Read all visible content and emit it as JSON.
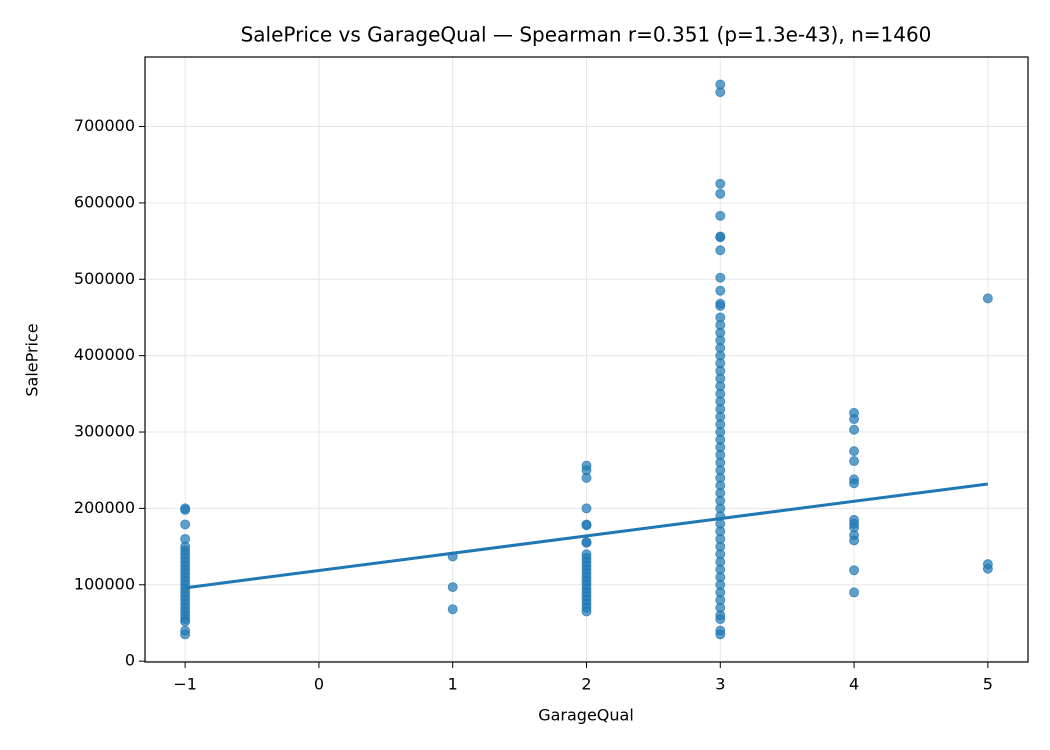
{
  "chart_data": {
    "type": "scatter",
    "title": "SalePrice vs GarageQual — Spearman r=0.351 (p=1.3e-43), n=1460",
    "x_label": "GarageQual",
    "y_label": "SalePrice",
    "xlim": [
      -1.3,
      5.3
    ],
    "ylim": [
      -1100,
      791000
    ],
    "xticks": [
      {
        "value": -1,
        "label": "−1"
      },
      0,
      1,
      2,
      3,
      4,
      5
    ],
    "yticks": [
      0,
      100000,
      200000,
      300000,
      400000,
      500000,
      600000,
      700000
    ],
    "grid": true,
    "color": "#1f77b4",
    "groups": [
      {
        "x": -1,
        "values": [
          200000,
          198000,
          179000,
          160000,
          150000,
          145000,
          140000,
          135000,
          130000,
          125000,
          120000,
          115000,
          110000,
          105000,
          100000,
          95000,
          90000,
          85000,
          80000,
          75000,
          70000,
          65000,
          60000,
          55000,
          52000,
          40000,
          35000
        ]
      },
      {
        "x": 1,
        "values": [
          137000,
          97000,
          68000
        ]
      },
      {
        "x": 2,
        "values": [
          256000,
          250000,
          240000,
          200000,
          179000,
          178000,
          156000,
          155000,
          140000,
          135000,
          130000,
          125000,
          120000,
          115000,
          110000,
          105000,
          100000,
          95000,
          90000,
          85000,
          80000,
          75000,
          70000,
          65000
        ]
      },
      {
        "x": 3,
        "values": [
          755000,
          745000,
          625000,
          612000,
          583000,
          556000,
          555000,
          538000,
          502000,
          485000,
          468000,
          465000,
          450000,
          440000,
          430000,
          420000,
          410000,
          400000,
          390000,
          380000,
          370000,
          360000,
          350000,
          340000,
          330000,
          320000,
          310000,
          300000,
          290000,
          280000,
          270000,
          260000,
          250000,
          240000,
          230000,
          220000,
          210000,
          200000,
          190000,
          180000,
          170000,
          160000,
          150000,
          140000,
          130000,
          120000,
          110000,
          100000,
          90000,
          80000,
          70000,
          60000,
          55000,
          40000,
          35000
        ]
      },
      {
        "x": 4,
        "values": [
          325000,
          317000,
          303000,
          275000,
          262000,
          238000,
          233000,
          185000,
          180000,
          175000,
          165000,
          158000,
          119000,
          90000
        ]
      },
      {
        "x": 5,
        "values": [
          475000,
          127000,
          121000
        ]
      }
    ],
    "fit": {
      "x": [
        -1,
        5
      ],
      "y": [
        96000,
        232000
      ],
      "color": "#1f77b4"
    }
  }
}
